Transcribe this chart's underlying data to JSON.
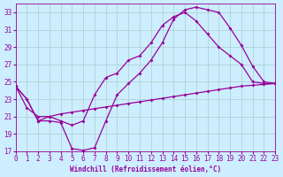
{
  "xlabel": "Windchill (Refroidissement éolien,°C)",
  "bg_color": "#cceeff",
  "line_color": "#990099",
  "grid_color": "#aacccc",
  "xlim": [
    0,
    23
  ],
  "ylim": [
    17,
    34
  ],
  "yticks": [
    17,
    19,
    21,
    23,
    25,
    27,
    29,
    31,
    33
  ],
  "xticks": [
    0,
    1,
    2,
    3,
    4,
    5,
    6,
    7,
    8,
    9,
    10,
    11,
    12,
    13,
    14,
    15,
    16,
    17,
    18,
    19,
    20,
    21,
    22,
    23
  ],
  "line1_x": [
    0,
    1,
    2,
    3,
    4,
    5,
    6,
    7,
    8,
    9,
    10,
    11,
    12,
    13,
    14,
    15,
    16,
    17,
    18,
    19,
    20,
    21,
    22,
    23
  ],
  "line1_y": [
    24.5,
    23.0,
    20.5,
    20.5,
    20.3,
    17.3,
    17.1,
    17.4,
    20.5,
    23.5,
    24.8,
    26.0,
    27.5,
    29.5,
    32.2,
    33.3,
    33.6,
    33.3,
    33.0,
    31.2,
    29.2,
    26.8,
    25.0,
    24.8
  ],
  "line2_x": [
    0,
    1,
    2,
    3,
    4,
    5,
    6,
    7,
    8,
    9,
    10,
    11,
    12,
    13,
    14,
    15,
    16,
    17,
    18,
    19,
    20,
    21,
    22,
    23
  ],
  "line2_y": [
    24.5,
    23.0,
    20.5,
    21.0,
    20.5,
    20.0,
    20.5,
    23.5,
    25.5,
    26.0,
    27.5,
    28.0,
    29.5,
    31.5,
    32.5,
    33.0,
    32.0,
    30.5,
    29.0,
    28.0,
    27.0,
    25.0,
    24.8,
    24.8
  ],
  "line3_x": [
    0,
    1,
    2,
    3,
    4,
    5,
    6,
    7,
    8,
    9,
    10,
    11,
    12,
    13,
    14,
    15,
    16,
    17,
    18,
    19,
    20,
    21,
    22,
    23
  ],
  "line3_y": [
    24.5,
    22.0,
    21.0,
    21.0,
    21.3,
    21.5,
    21.7,
    21.9,
    22.1,
    22.3,
    22.5,
    22.7,
    22.9,
    23.1,
    23.3,
    23.5,
    23.7,
    23.9,
    24.1,
    24.3,
    24.5,
    24.6,
    24.7,
    24.8
  ]
}
